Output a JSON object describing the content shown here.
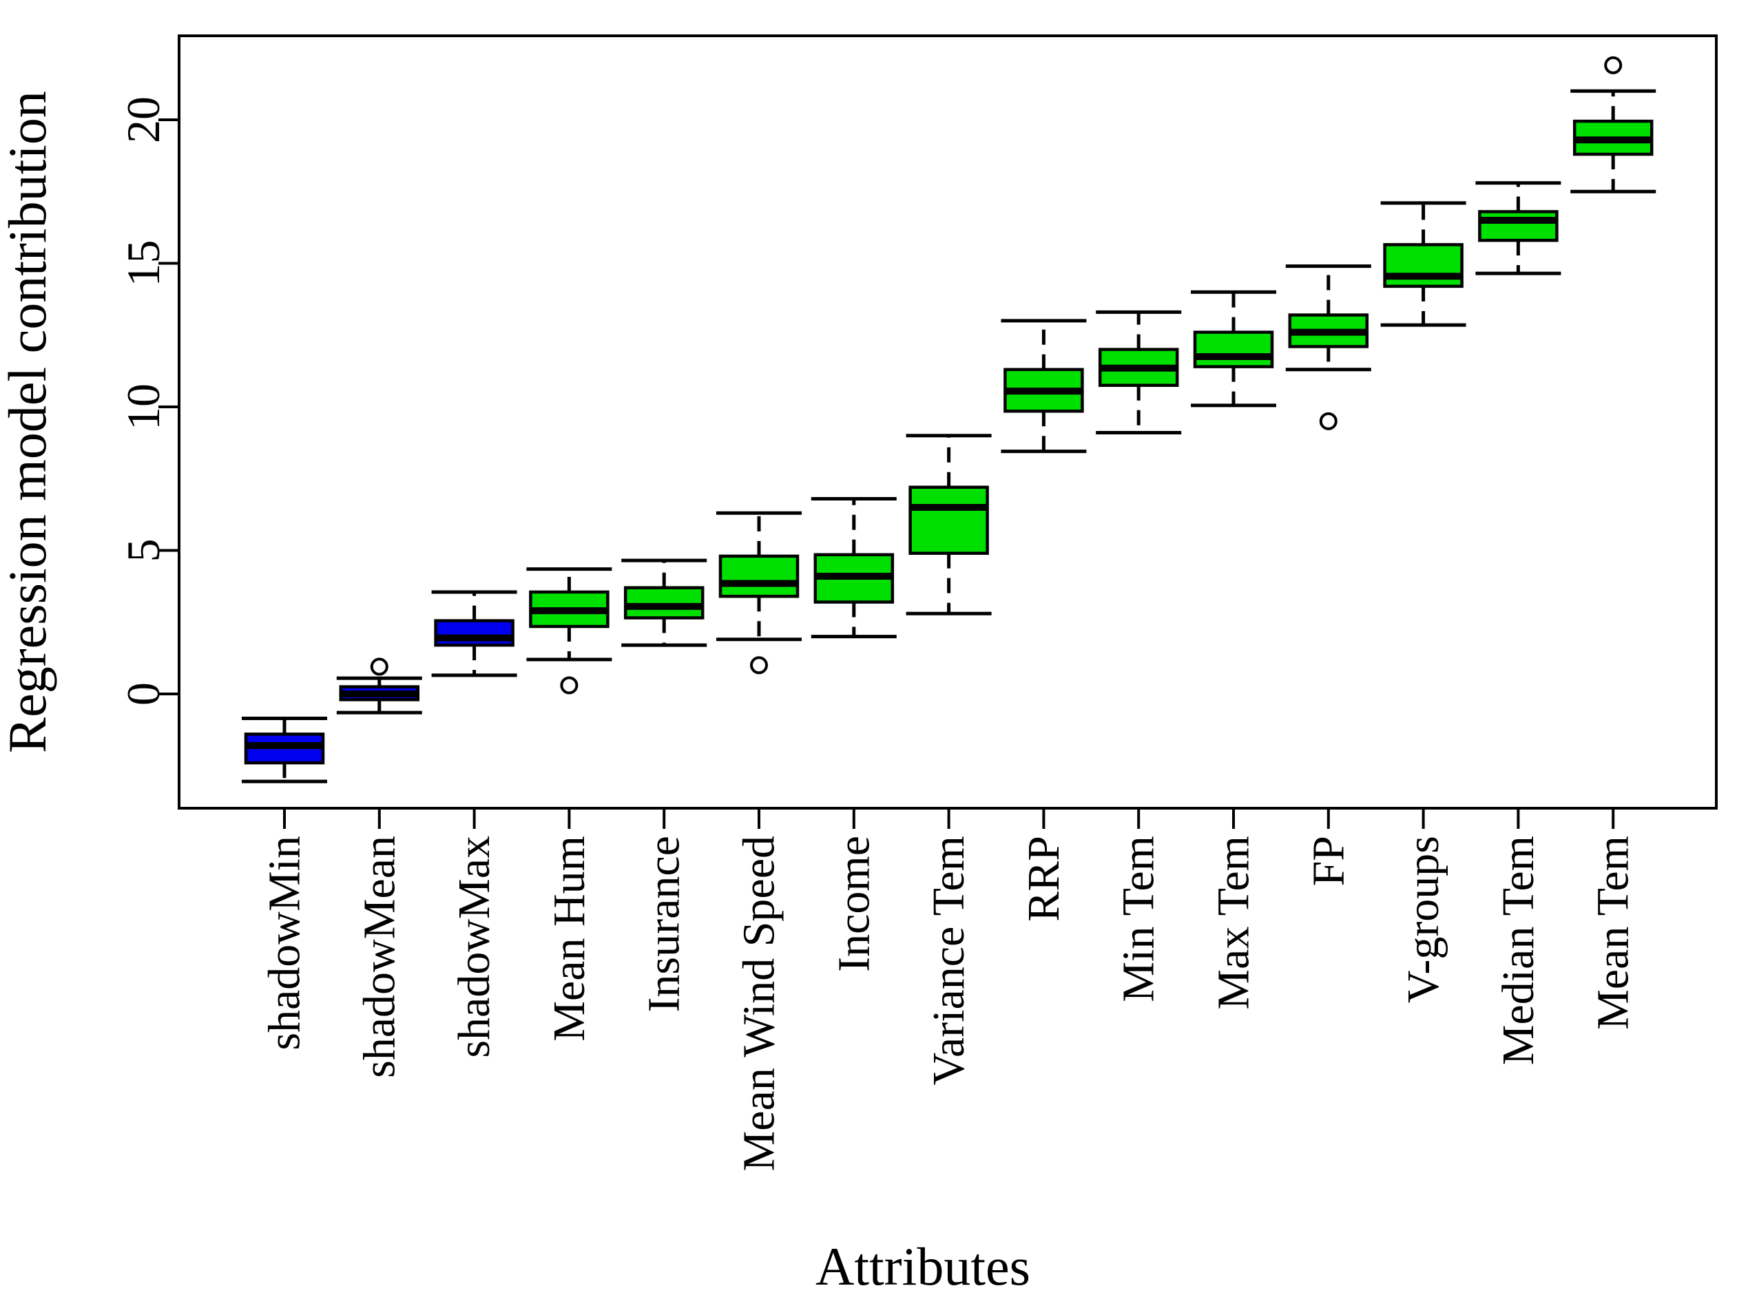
{
  "figure": {
    "background": "#ffffff",
    "frame_color": "#000000"
  },
  "chart_data": {
    "type": "boxplot",
    "title": "",
    "xlabel": "Attributes",
    "ylabel": "Regression model contribution",
    "legend": "none",
    "grid": false,
    "whisker_style": "dashed",
    "outlier_marker": "open-circle",
    "y_ticks": [
      0,
      5,
      10,
      15,
      20
    ],
    "ylim": [
      -4.0,
      22.95
    ],
    "box_colors": {
      "shadow": "#0000ee",
      "attribute": "#00e000",
      "border": "#000000",
      "median": "#000000"
    },
    "categories": [
      "shadowMin",
      "shadowMean",
      "shadowMax",
      "Mean Hum",
      "Insurance",
      "Mean Wind Speed",
      "Income",
      "Variance Tem",
      "RRP",
      "Min Tem",
      "Max Tem",
      "FP",
      "V-groups",
      "Median Tem",
      "Mean Tem"
    ],
    "series": [
      {
        "name": "shadowMin",
        "group": "shadow",
        "low": -3.05,
        "q1": -2.4,
        "median": -1.8,
        "q3": -1.4,
        "high": -0.85,
        "outliers": []
      },
      {
        "name": "shadowMean",
        "group": "shadow",
        "low": -0.65,
        "q1": -0.2,
        "median": 0.0,
        "q3": 0.25,
        "high": 0.55,
        "outliers": [
          0.95
        ]
      },
      {
        "name": "shadowMax",
        "group": "shadow",
        "low": 0.65,
        "q1": 1.7,
        "median": 1.95,
        "q3": 2.55,
        "high": 3.55,
        "outliers": []
      },
      {
        "name": "Mean Hum",
        "group": "attribute",
        "low": 1.2,
        "q1": 2.35,
        "median": 2.9,
        "q3": 3.55,
        "high": 4.35,
        "outliers": [
          0.3
        ]
      },
      {
        "name": "Insurance",
        "group": "attribute",
        "low": 1.7,
        "q1": 2.65,
        "median": 3.05,
        "q3": 3.7,
        "high": 4.65,
        "outliers": []
      },
      {
        "name": "Mean Wind Speed",
        "group": "attribute",
        "low": 1.9,
        "q1": 3.4,
        "median": 3.85,
        "q3": 4.8,
        "high": 6.3,
        "outliers": [
          1.0
        ]
      },
      {
        "name": "Income",
        "group": "attribute",
        "low": 2.0,
        "q1": 3.2,
        "median": 4.1,
        "q3": 4.85,
        "high": 6.8,
        "outliers": []
      },
      {
        "name": "Variance Tem",
        "group": "attribute",
        "low": 2.8,
        "q1": 4.9,
        "median": 6.5,
        "q3": 7.2,
        "high": 9.0,
        "outliers": []
      },
      {
        "name": "RRP",
        "group": "attribute",
        "low": 8.45,
        "q1": 9.85,
        "median": 10.55,
        "q3": 11.3,
        "high": 13.0,
        "outliers": []
      },
      {
        "name": "Min Tem",
        "group": "attribute",
        "low": 9.1,
        "q1": 10.75,
        "median": 11.35,
        "q3": 12.0,
        "high": 13.3,
        "outliers": []
      },
      {
        "name": "Max Tem",
        "group": "attribute",
        "low": 10.05,
        "q1": 11.4,
        "median": 11.75,
        "q3": 12.6,
        "high": 14.0,
        "outliers": []
      },
      {
        "name": "FP",
        "group": "attribute",
        "low": 11.3,
        "q1": 12.1,
        "median": 12.6,
        "q3": 13.2,
        "high": 14.9,
        "outliers": [
          9.5
        ]
      },
      {
        "name": "V-groups",
        "group": "attribute",
        "low": 12.85,
        "q1": 14.2,
        "median": 14.55,
        "q3": 15.65,
        "high": 17.1,
        "outliers": []
      },
      {
        "name": "Median Tem",
        "group": "attribute",
        "low": 14.65,
        "q1": 15.8,
        "median": 16.5,
        "q3": 16.8,
        "high": 17.8,
        "outliers": []
      },
      {
        "name": "Mean Tem",
        "group": "attribute",
        "low": 17.5,
        "q1": 18.8,
        "median": 19.3,
        "q3": 19.95,
        "high": 21.0,
        "outliers": [
          21.9
        ]
      }
    ]
  }
}
